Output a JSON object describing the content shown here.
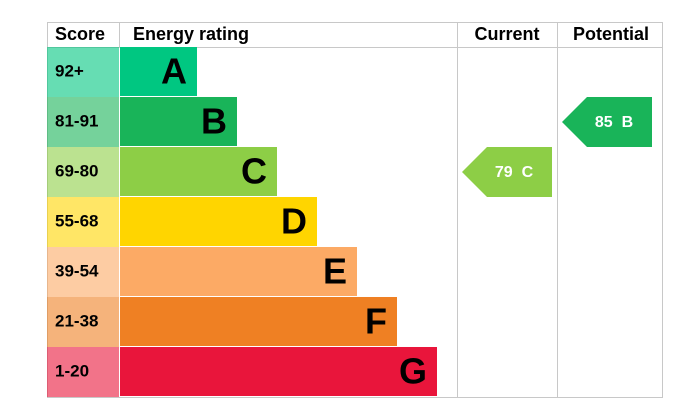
{
  "chart_data": {
    "type": "epc",
    "headers": {
      "score": "Score",
      "rating": "Energy rating",
      "current": "Current",
      "potential": "Potential"
    },
    "bands": [
      {
        "score": "92+",
        "letter": "A",
        "color": "#00c781"
      },
      {
        "score": "81-91",
        "letter": "B",
        "color": "#19b459"
      },
      {
        "score": "69-80",
        "letter": "C",
        "color": "#8dce46"
      },
      {
        "score": "55-68",
        "letter": "D",
        "color": "#ffd500"
      },
      {
        "score": "39-54",
        "letter": "E",
        "color": "#fcaa65"
      },
      {
        "score": "21-38",
        "letter": "F",
        "color": "#ef8023"
      },
      {
        "score": "1-20",
        "letter": "G",
        "color": "#e9153b"
      }
    ],
    "current": {
      "score": 79,
      "letter": "C"
    },
    "potential": {
      "score": 85,
      "letter": "B"
    }
  }
}
